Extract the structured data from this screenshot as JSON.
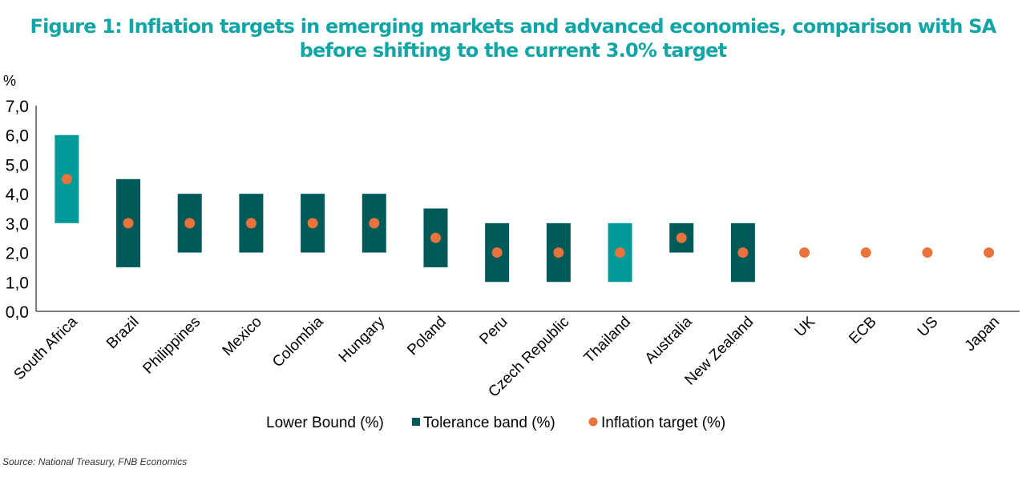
{
  "chart_data": {
    "type": "bar",
    "subtype": "floating-range-with-markers",
    "title": "Figure 1: Inflation targets in emerging markets and advanced economies, comparison with SA before shifting to the current 3.0% target",
    "ylabel": "%",
    "ylim": [
      0,
      7
    ],
    "yticks": [
      "0,0",
      "1,0",
      "2,0",
      "3,0",
      "4,0",
      "5,0",
      "6,0",
      "7,0"
    ],
    "grid": false,
    "legend_position": "bottom",
    "categories": [
      "South Africa",
      "Brazil",
      "Philippines",
      "Mexico",
      "Colombia",
      "Hungary",
      "Poland",
      "Peru",
      "Czech Republic",
      "Thailand",
      "Australia",
      "New Zealand",
      "UK",
      "ECB",
      "US",
      "Japan"
    ],
    "series": [
      {
        "name": "Lower Bound (%)",
        "values": [
          3,
          1.5,
          2,
          2,
          2,
          2,
          1.5,
          1,
          1,
          1,
          2,
          1,
          null,
          null,
          null,
          null
        ]
      },
      {
        "name": "Tolerance band (%)",
        "values": [
          3,
          3,
          2,
          2,
          2,
          2,
          2,
          2,
          2,
          2,
          1,
          2,
          null,
          null,
          null,
          null
        ]
      },
      {
        "name": "Inflation target (%)",
        "values": [
          4.5,
          3,
          3,
          3,
          3,
          3,
          2.5,
          2,
          2,
          2,
          2.5,
          2,
          2,
          2,
          2,
          2
        ]
      }
    ],
    "highlighted_categories": [
      "South Africa",
      "Thailand"
    ],
    "colors": {
      "band": "#005a5a",
      "highlight": "#009b98",
      "target": "#e8743b",
      "axis": "#000000",
      "title": "#12a5a5"
    }
  },
  "source": "Source: National Treasury, FNB Economics"
}
